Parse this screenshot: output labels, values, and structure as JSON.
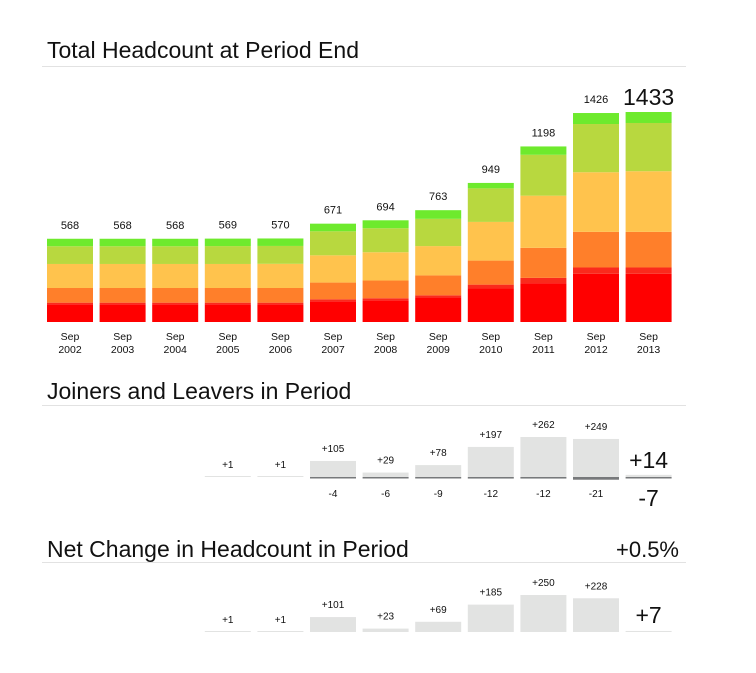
{
  "sections": {
    "headcount_title": "Total Headcount at Period End",
    "joiners_title": "Joiners and Leavers in Period",
    "net_title": "Net Change in Headcount in Period",
    "net_pct": "+0.5%"
  },
  "colors": {
    "band_1": "#ff0000",
    "band_2": "#fa2a1c",
    "band_3": "#ff7f2a",
    "band_4": "#ffc34d",
    "band_5": "#b8d83f",
    "band_6": "#6eea2d",
    "flow_bar": "#e2e3e2",
    "flow_highlight": "#77797b"
  },
  "chart_data": [
    {
      "type": "bar",
      "stacked": true,
      "title": "Total Headcount at Period End",
      "categories": [
        "Sep 2002",
        "Sep 2003",
        "Sep 2004",
        "Sep 2005",
        "Sep 2006",
        "Sep 2007",
        "Sep 2008",
        "Sep 2009",
        "Sep 2010",
        "Sep 2011",
        "Sep 2012",
        "Sep 2013"
      ],
      "category_lines": [
        [
          "Sep",
          "2002"
        ],
        [
          "Sep",
          "2003"
        ],
        [
          "Sep",
          "2004"
        ],
        [
          "Sep",
          "2005"
        ],
        [
          "Sep",
          "2006"
        ],
        [
          "Sep",
          "2007"
        ],
        [
          "Sep",
          "2008"
        ],
        [
          "Sep",
          "2009"
        ],
        [
          "Sep",
          "2010"
        ],
        [
          "Sep",
          "2011"
        ],
        [
          "Sep",
          "2012"
        ],
        [
          "Sep",
          "2013"
        ]
      ],
      "totals": [
        568,
        568,
        568,
        569,
        570,
        671,
        694,
        763,
        949,
        1198,
        1426,
        1433
      ],
      "series": [
        {
          "values": [
            121,
            121,
            121,
            121,
            121,
            141,
            148,
            168,
            229,
            265,
            329,
            329
          ]
        },
        {
          "values": [
            11,
            11,
            11,
            11,
            11,
            14,
            14,
            14,
            26,
            36,
            43,
            43
          ]
        },
        {
          "values": [
            100,
            100,
            100,
            100,
            100,
            114,
            121,
            136,
            164,
            205,
            243,
            243
          ]
        },
        {
          "values": [
            164,
            164,
            164,
            164,
            165,
            186,
            193,
            200,
            264,
            356,
            407,
            414
          ]
        },
        {
          "values": [
            121,
            121,
            121,
            122,
            122,
            164,
            164,
            186,
            229,
            279,
            329,
            329
          ]
        },
        {
          "values": [
            51,
            51,
            51,
            51,
            51,
            52,
            54,
            59,
            37,
            57,
            75,
            75
          ]
        }
      ],
      "ylim": [
        0,
        1500
      ],
      "grid": false
    },
    {
      "type": "bar",
      "title": "Joiners and Leavers in Period",
      "categories": [
        "Sep 2002",
        "Sep 2003",
        "Sep 2004",
        "Sep 2005",
        "Sep 2006",
        "Sep 2007",
        "Sep 2008",
        "Sep 2009",
        "Sep 2010",
        "Sep 2011",
        "Sep 2012",
        "Sep 2013"
      ],
      "series": [
        {
          "values": [
            null,
            null,
            null,
            1,
            1,
            105,
            29,
            78,
            197,
            262,
            249,
            14
          ],
          "labels": [
            "",
            "",
            "",
            "+1",
            "+1",
            "+105",
            "+29",
            "+78",
            "+197",
            "+262",
            "+249",
            "+14"
          ]
        },
        {
          "values": [
            null,
            null,
            null,
            null,
            null,
            -4,
            -6,
            -9,
            -12,
            -12,
            -21,
            -7
          ],
          "labels": [
            "",
            "",
            "",
            "",
            "",
            "-4",
            "-6",
            "-9",
            "-12",
            "-12",
            "-21",
            "-7"
          ]
        }
      ],
      "ylim": [
        -25,
        270
      ],
      "grid": false
    },
    {
      "type": "bar",
      "title": "Net Change in Headcount in Period",
      "categories": [
        "Sep 2002",
        "Sep 2003",
        "Sep 2004",
        "Sep 2005",
        "Sep 2006",
        "Sep 2007",
        "Sep 2008",
        "Sep 2009",
        "Sep 2010",
        "Sep 2011",
        "Sep 2012",
        "Sep 2013"
      ],
      "values": [
        null,
        null,
        null,
        1,
        1,
        101,
        23,
        69,
        185,
        250,
        228,
        7
      ],
      "labels": [
        "",
        "",
        "",
        "+1",
        "+1",
        "+101",
        "+23",
        "+69",
        "+185",
        "+250",
        "+228",
        "+7"
      ],
      "ylim": [
        0,
        250
      ],
      "grid": false
    }
  ]
}
